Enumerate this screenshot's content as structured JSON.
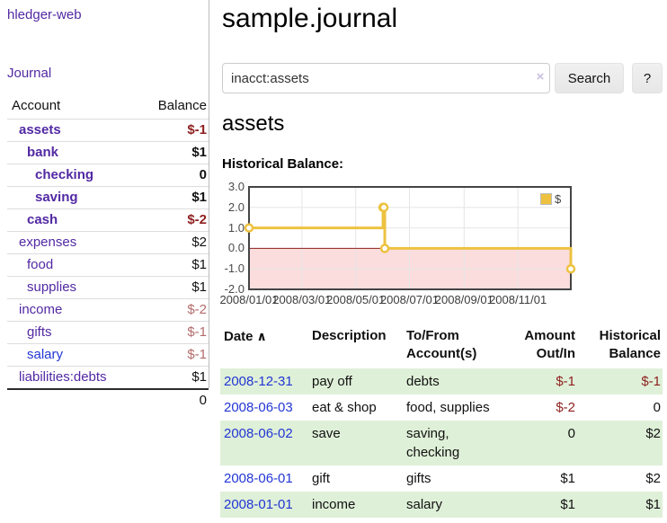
{
  "app": {
    "brand": "hledger-web",
    "nav_journal": "Journal"
  },
  "sidebar": {
    "accounts_header": {
      "account": "Account",
      "balance": "Balance"
    },
    "accounts": [
      {
        "name": "assets",
        "indent": 1,
        "bold": true,
        "balance": "$-1",
        "balance_style": "neg-strong"
      },
      {
        "name": "bank",
        "indent": 2,
        "bold": true,
        "balance": "$1",
        "balance_style": "pos"
      },
      {
        "name": "checking",
        "indent": 3,
        "bold": true,
        "balance": "0",
        "balance_style": "pos"
      },
      {
        "name": "saving",
        "indent": 3,
        "bold": true,
        "balance": "$1",
        "balance_style": "pos"
      },
      {
        "name": "cash",
        "indent": 2,
        "bold": true,
        "balance": "$-2",
        "balance_style": "neg-strong"
      },
      {
        "name": "expenses",
        "indent": 1,
        "bold": false,
        "balance": "$2",
        "balance_style": "pos"
      },
      {
        "name": "food",
        "indent": 2,
        "bold": false,
        "balance": "$1",
        "balance_style": "pos"
      },
      {
        "name": "supplies",
        "indent": 2,
        "bold": false,
        "balance": "$1",
        "balance_style": "pos"
      },
      {
        "name": "income",
        "indent": 1,
        "bold": false,
        "balance": "$-2",
        "balance_style": "neg-muted"
      },
      {
        "name": "gifts",
        "indent": 2,
        "bold": false,
        "balance": "$-1",
        "balance_style": "neg-muted"
      },
      {
        "name": "salary",
        "indent": 2,
        "bold": false,
        "balance": "$-1",
        "balance_style": "neg-muted",
        "link_color": "blue"
      },
      {
        "name": "liabilities:debts",
        "indent": 1,
        "bold": false,
        "balance": "$1",
        "balance_style": "pos"
      }
    ],
    "total": "0"
  },
  "header": {
    "title": "sample.journal"
  },
  "search": {
    "value": "inacct:assets",
    "clear_icon": "×",
    "button": "Search",
    "help_button": "?"
  },
  "account_page": {
    "title": "assets",
    "chart_label": "Historical Balance:"
  },
  "chart_data": {
    "type": "line",
    "step": true,
    "title": "Historical Balance",
    "series": [
      {
        "name": "$",
        "color": "#edc240",
        "points": [
          [
            "2008/01/01",
            1
          ],
          [
            "2008/06/01",
            2
          ],
          [
            "2008/06/02",
            2
          ],
          [
            "2008/06/03",
            0
          ],
          [
            "2008/12/31",
            -1
          ]
        ]
      }
    ],
    "x_range": [
      "2008/01/01",
      "2008/12/31"
    ],
    "x_ticks": [
      "2008/01/01",
      "2008/03/01",
      "2008/05/01",
      "2008/07/01",
      "2008/09/01",
      "2008/11/01"
    ],
    "y_ticks": [
      "3.0",
      "2.0",
      "1.0",
      "0.0",
      "-1.0",
      "-2.0"
    ],
    "ylim": [
      -2,
      3
    ],
    "grid": true,
    "legend": {
      "label": "$",
      "position": "top-right"
    },
    "negative_fill": "#fbdddd",
    "zero_line_color": "#8b1d1d"
  },
  "register": {
    "columns": [
      "Date",
      "Description",
      "To/From\nAccount(s)",
      "Amount\nOut/In",
      "Historical\nBalance"
    ],
    "sort_icon": "∧",
    "rows": [
      {
        "date": "2008-12-31",
        "description": "pay off",
        "accounts": "debts",
        "amount": "$-1",
        "amount_neg": true,
        "balance": "$-1",
        "balance_neg": true
      },
      {
        "date": "2008-06-03",
        "description": "eat & shop",
        "accounts": "food, supplies",
        "amount": "$-2",
        "amount_neg": true,
        "balance": "0",
        "balance_neg": false
      },
      {
        "date": "2008-06-02",
        "description": "save",
        "accounts": "saving, checking",
        "amount": "0",
        "amount_neg": false,
        "balance": "$2",
        "balance_neg": false
      },
      {
        "date": "2008-06-01",
        "description": "gift",
        "accounts": "gifts",
        "amount": "$1",
        "amount_neg": false,
        "balance": "$2",
        "balance_neg": false
      },
      {
        "date": "2008-01-01",
        "description": "income",
        "accounts": "salary",
        "amount": "$1",
        "amount_neg": false,
        "balance": "$1",
        "balance_neg": false
      }
    ]
  },
  "colors": {
    "link_purple": "#5229a3",
    "link_blue": "#2236d4",
    "neg_strong": "#8e1f1f",
    "neg_muted": "#b46a6a",
    "row_green": "#dff0d8",
    "gold": "#edc240",
    "neg_region_pink": "#fbdddd",
    "zero_line": "#8b1d1d",
    "chart_border": "#444444",
    "grid_line": "#e6e6e6",
    "button_bg": "#f0f0f0",
    "divider": "#bbbbbb"
  }
}
